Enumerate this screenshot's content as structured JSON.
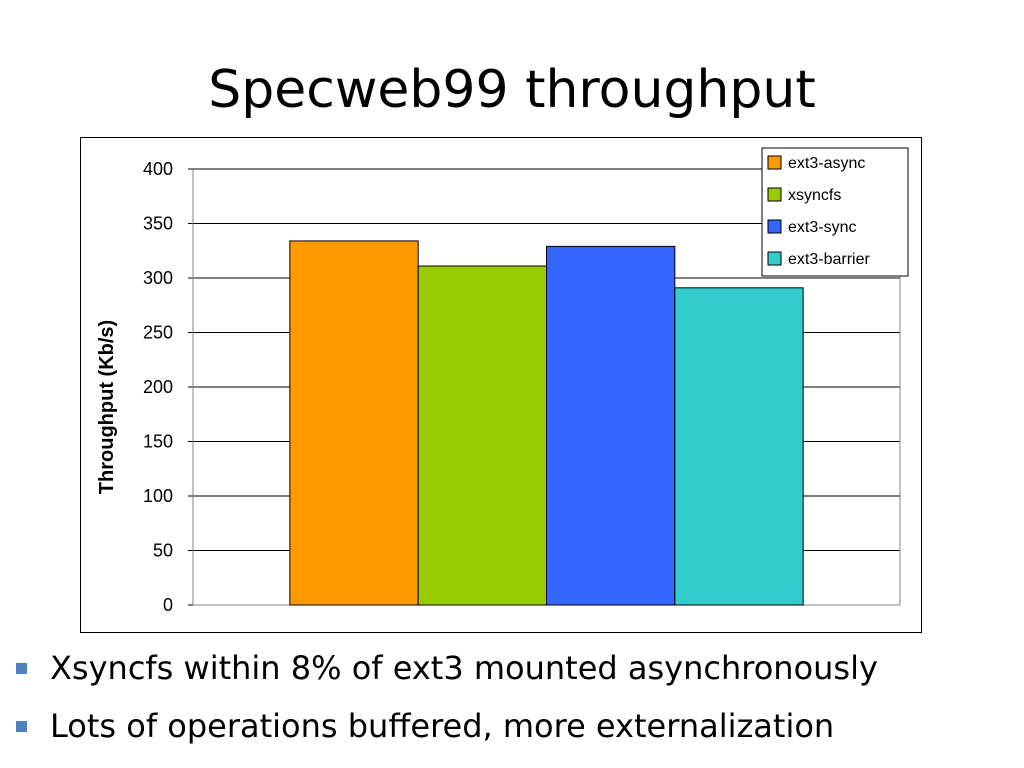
{
  "slide": {
    "title": "Specweb99 throughput",
    "bullets": [
      "Xsyncfs within 8% of ext3 mounted asynchronously",
      "Lots of operations buffered, more externalization"
    ],
    "bullet_color": "#4f81bd"
  },
  "chart_data": {
    "type": "bar",
    "title": "",
    "xlabel": "",
    "ylabel": "Throughput (Kb/s)",
    "ylim": [
      0,
      400
    ],
    "yticks": [
      0,
      50,
      100,
      150,
      200,
      250,
      300,
      350,
      400
    ],
    "grid": true,
    "legend_position": "top-right",
    "categories": [
      ""
    ],
    "series": [
      {
        "name": "ext3-async",
        "values": [
          334
        ],
        "color": "#ff9900"
      },
      {
        "name": "xsyncfs",
        "values": [
          311
        ],
        "color": "#99cc00"
      },
      {
        "name": "ext3-sync",
        "values": [
          329
        ],
        "color": "#3366ff"
      },
      {
        "name": "ext3-barrier",
        "values": [
          291
        ],
        "color": "#33cccc"
      }
    ]
  }
}
